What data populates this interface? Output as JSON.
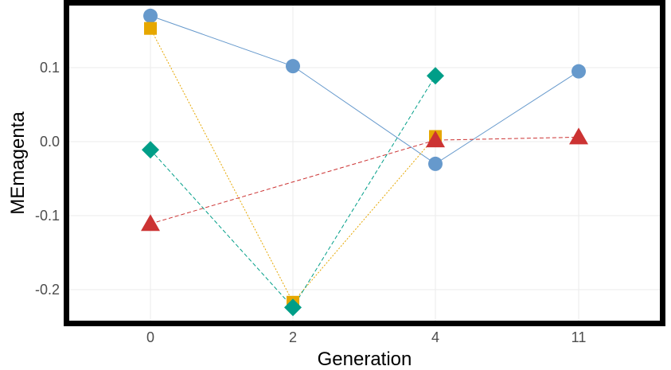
{
  "chart_data": {
    "type": "line",
    "xlabel": "Generation",
    "ylabel": "MEmagenta",
    "categories": [
      "0",
      "2",
      "4",
      "11"
    ],
    "y_ticks": [
      -0.2,
      -0.1,
      0.0,
      0.1
    ],
    "y_tick_labels": [
      "-0.2",
      "-0.1",
      "0.0",
      "0.1"
    ],
    "ylim": [
      -0.24,
      0.18
    ],
    "grid": true,
    "legend": "none",
    "series": [
      {
        "values": [
          0.17,
          0.102,
          -0.03,
          0.095
        ],
        "color": "#6699CC",
        "marker": "circle",
        "dash": "solid"
      },
      {
        "values": [
          0.153,
          -0.217,
          0.007,
          null
        ],
        "color": "#E6A700",
        "marker": "square",
        "dash": "dotted"
      },
      {
        "values": [
          -0.011,
          -0.224,
          0.089,
          null
        ],
        "color": "#009E88",
        "marker": "diamond",
        "dash": "dashed"
      },
      {
        "values": [
          -0.111,
          null,
          0.002,
          0.006
        ],
        "color": "#CC3333",
        "marker": "triangle",
        "dash": "dashed"
      }
    ]
  }
}
